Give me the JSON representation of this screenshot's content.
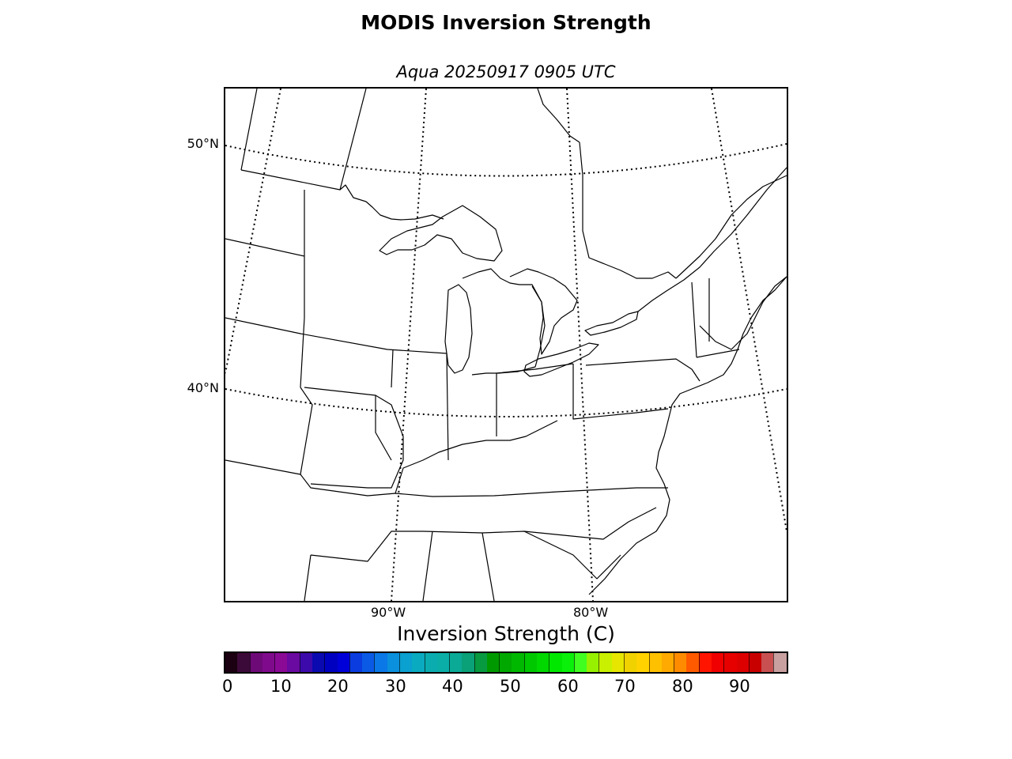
{
  "title": "MODIS Inversion Strength",
  "subtitle": "Aqua 20250917 0905 UTC",
  "map": {
    "latitude_labels": [
      "50°N",
      "40°N"
    ],
    "longitude_labels": [
      "90°W",
      "80°W"
    ],
    "graticule_style": "dotted",
    "region": "Great Lakes / Northeastern United States"
  },
  "colorbar": {
    "label": "Inversion Strength (C)",
    "tick_labels": [
      "0",
      "10",
      "20",
      "30",
      "40",
      "50",
      "60",
      "70",
      "80",
      "90"
    ],
    "colors": [
      "#1a0010",
      "#3c0a38",
      "#6e0a78",
      "#800a8c",
      "#8a0a96",
      "#6a0aa0",
      "#3c0aaa",
      "#0a0ab0",
      "#0000c0",
      "#0000d8",
      "#0a3ce0",
      "#0a5ae6",
      "#0a78e6",
      "#0a90dc",
      "#0aa0d0",
      "#0aaac0",
      "#0aacb0",
      "#0aaea6",
      "#0aaa96",
      "#0aa078",
      "#089a40",
      "#009a00",
      "#00a800",
      "#00b800",
      "#00c800",
      "#00d800",
      "#00e800",
      "#0af00a",
      "#40ff20",
      "#96f000",
      "#c8f000",
      "#e6e600",
      "#f0d200",
      "#ffd200",
      "#ffc000",
      "#ffaa00",
      "#ff8c00",
      "#ff5a00",
      "#ff1400",
      "#f00000",
      "#e60000",
      "#dc0000",
      "#c80000",
      "#c85050",
      "#c8a0a0"
    ]
  }
}
